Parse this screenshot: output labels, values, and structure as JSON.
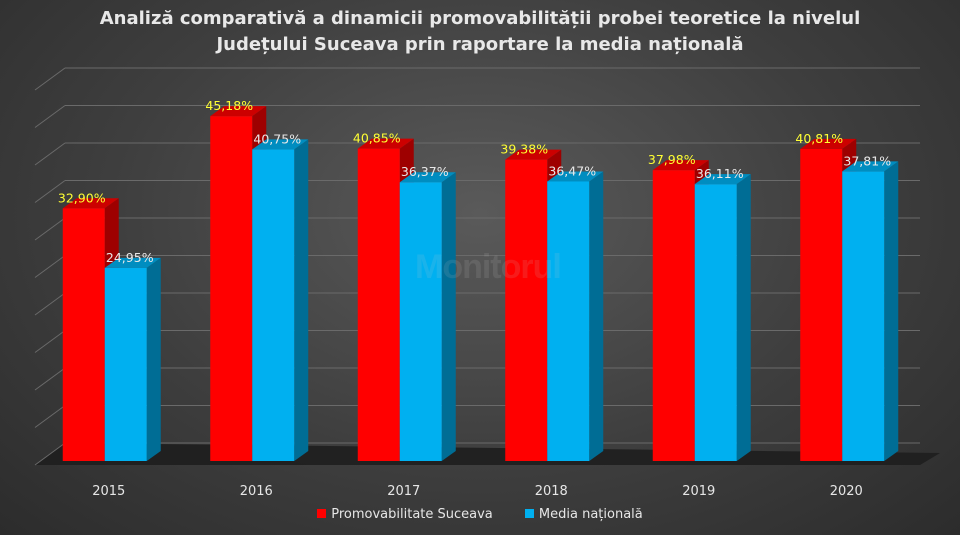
{
  "chart_data": {
    "type": "bar",
    "title_line1": "Analiză comparativă a dinamicii promovabilității probei teoretice la nivelul",
    "title_line2": "Județului Suceava prin raportare la media națională",
    "categories": [
      "2015",
      "2016",
      "2017",
      "2018",
      "2019",
      "2020"
    ],
    "series": [
      {
        "name": "Promovabilitate Suceava",
        "color": "#ff0000",
        "values": [
          32.9,
          45.18,
          40.85,
          39.38,
          37.98,
          40.81
        ],
        "labels": [
          "32,90%",
          "45,18%",
          "40,85%",
          "39,38%",
          "37,98%",
          "40,81%"
        ],
        "label_color": "#ffff33"
      },
      {
        "name": "Media națională",
        "color": "#00b0f0",
        "values": [
          24.95,
          40.75,
          36.37,
          36.47,
          36.11,
          37.81
        ],
        "labels": [
          "24,95%",
          "40,75%",
          "36,37%",
          "36,47%",
          "36,11%",
          "37,81%"
        ],
        "label_color": "#e8e8e8"
      }
    ],
    "ylim": [
      0,
      50
    ],
    "grid": true,
    "legend": "bottom"
  },
  "watermark": "Monitorul"
}
